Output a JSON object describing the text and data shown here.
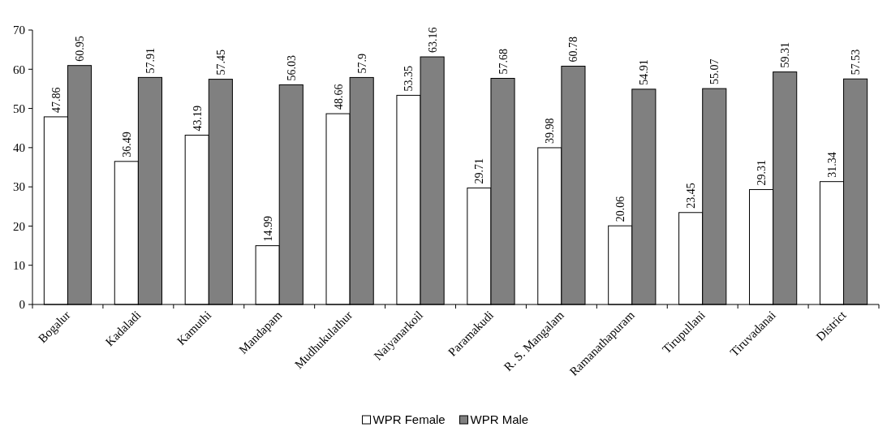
{
  "chart_data": {
    "type": "bar",
    "categories": [
      "Bogalur",
      "Kadaladi",
      "Kamuthi",
      "Mandapam",
      "Mudhukulathur",
      "Naiyanarkoil",
      "Paramakudi",
      "R. S. Mangalam",
      "Ramanathapuram",
      "Tirupullani",
      "Tiruvadanai",
      "District"
    ],
    "series": [
      {
        "name": "WPR Female",
        "color": "#ffffff",
        "values": [
          47.86,
          36.49,
          43.19,
          14.99,
          48.66,
          53.35,
          29.71,
          39.98,
          20.06,
          23.45,
          29.31,
          31.34
        ]
      },
      {
        "name": "WPR Male",
        "color": "#808080",
        "values": [
          60.95,
          57.91,
          57.45,
          56.03,
          57.9,
          63.16,
          57.68,
          60.78,
          54.91,
          55.07,
          59.31,
          57.53
        ]
      }
    ],
    "ylim": [
      0,
      70
    ],
    "yticks": [
      0,
      10,
      20,
      30,
      40,
      50,
      60,
      70
    ],
    "data_labels": true,
    "legend": "bottom",
    "grid": false
  }
}
